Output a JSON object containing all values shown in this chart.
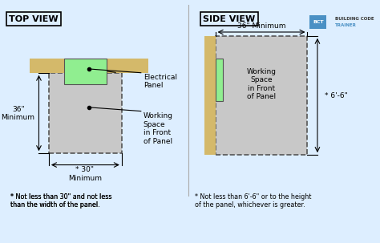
{
  "bg_color": "#ddeeff",
  "wall_color": "#d4b96a",
  "panel_color": "#90ee90",
  "working_space_color": "#c8c8c8",
  "title_top_view": "TOP VIEW",
  "title_side_view": "SIDE VIEW",
  "footnote_left": "* Not less than 30\" and not less\nthan the width of the panel.",
  "footnote_right": "* Not less than 6'-6\" or to the height\nof the panel, whichever is greater.",
  "label_electrical": "Electrical\nPanel",
  "label_working": "Working\nSpace\nin Front\nof Panel",
  "label_working_side": "Working\nSpace\nin Front\nof Panel",
  "dim_36_left": "36\"\nMinimum",
  "dim_30": "* 30\"\nMinimum",
  "dim_36_top_side": "36\" Minimum",
  "dim_6ft": "* 6'-6\"",
  "bct_text1": "BUILDING CODE",
  "bct_text2": "TRAINER"
}
